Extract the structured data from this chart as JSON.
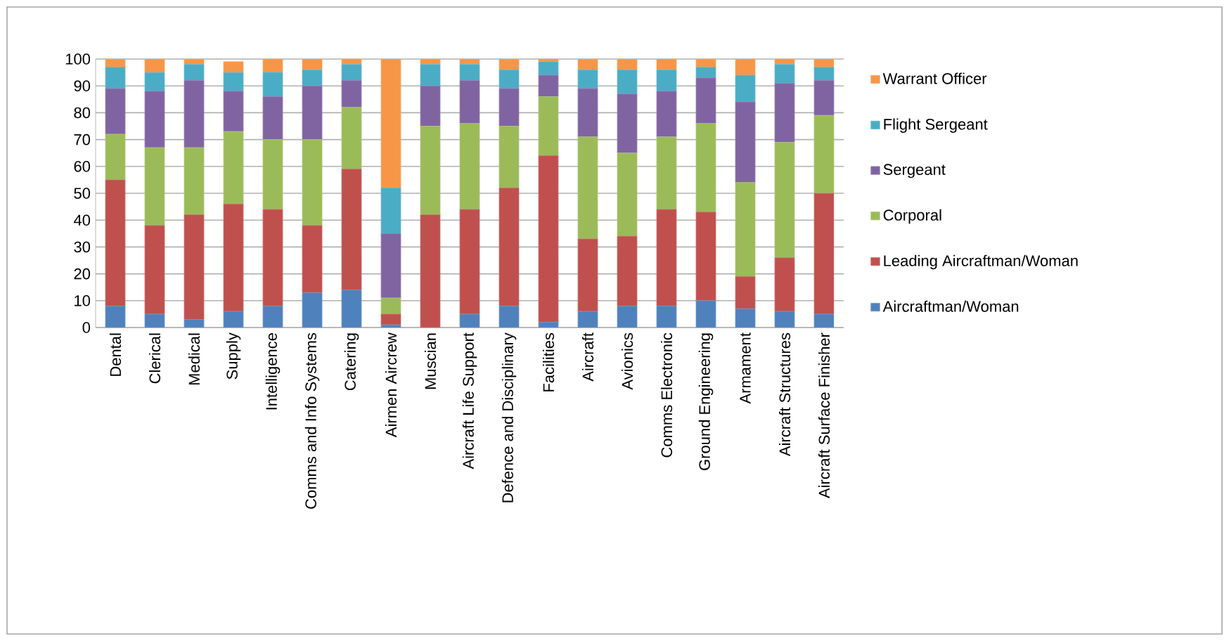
{
  "chart_data": {
    "type": "bar",
    "stacked": true,
    "categories": [
      "Dental",
      "Clerical",
      "Medical",
      "Supply",
      "Intelligence",
      "Comms and Info Systems",
      "Catering",
      "Airmen Aircrew",
      "Muscian",
      "Aircraft Life Support",
      "Defence and Disciplinary",
      "Facilities",
      "Aircraft",
      "Avionics",
      "Comms Electronic",
      "Ground Engineering",
      "Armament",
      "Aircraft Structures",
      "Aircraft Surface Finisher"
    ],
    "series": [
      {
        "name": "Aircraftman/Woman",
        "color": "#4f81bd",
        "values": [
          8,
          5,
          3,
          6,
          8,
          13,
          14,
          1,
          0,
          5,
          8,
          2,
          6,
          8,
          8,
          10,
          7,
          6,
          5
        ]
      },
      {
        "name": "Leading Aircraftman/Woman",
        "color": "#c0504d",
        "values": [
          47,
          33,
          39,
          40,
          36,
          25,
          45,
          4,
          42,
          39,
          44,
          62,
          27,
          26,
          36,
          33,
          12,
          20,
          45
        ]
      },
      {
        "name": "Corporal",
        "color": "#9bbb59",
        "values": [
          17,
          29,
          25,
          27,
          26,
          32,
          23,
          6,
          33,
          32,
          23,
          22,
          38,
          31,
          27,
          33,
          35,
          43,
          29
        ]
      },
      {
        "name": "Sergeant",
        "color": "#8064a2",
        "values": [
          17,
          21,
          25,
          15,
          16,
          20,
          10,
          24,
          15,
          16,
          14,
          8,
          18,
          22,
          17,
          17,
          30,
          22,
          13
        ]
      },
      {
        "name": "Flight Sergeant",
        "color": "#4bacc6",
        "values": [
          8,
          7,
          6,
          7,
          9,
          6,
          6,
          17,
          8,
          6,
          7,
          5,
          7,
          9,
          8,
          4,
          10,
          7,
          5
        ]
      },
      {
        "name": "Warrant Officer",
        "color": "#f79646",
        "values": [
          3,
          5,
          2,
          4,
          5,
          4,
          2,
          48,
          2,
          2,
          4,
          1,
          4,
          4,
          4,
          3,
          6,
          2,
          3
        ]
      }
    ],
    "ylim": [
      0,
      100
    ],
    "yticks": [
      0,
      10,
      20,
      30,
      40,
      50,
      60,
      70,
      80,
      90,
      100
    ],
    "grid": "y",
    "legend": "right"
  }
}
